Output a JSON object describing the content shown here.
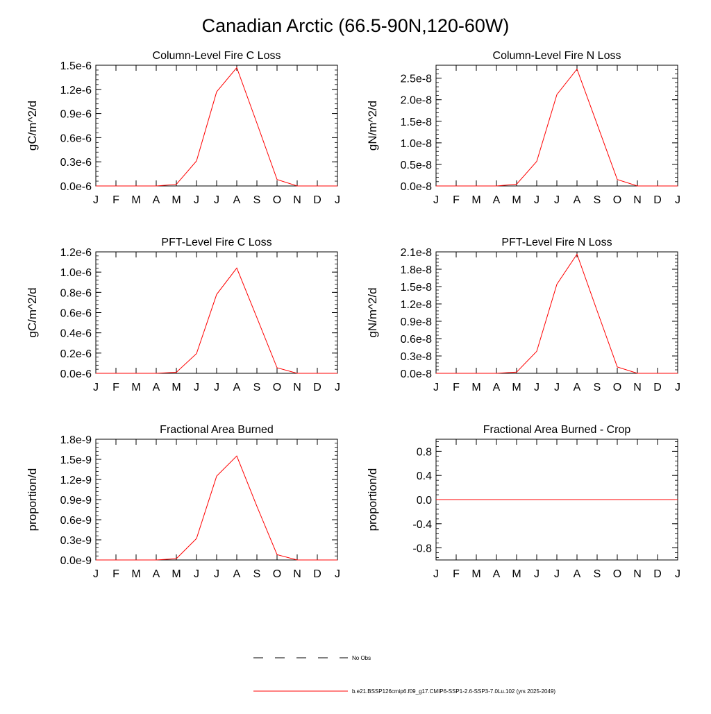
{
  "figure": {
    "title": "Canadian Arctic (66.5-90N,120-60W)"
  },
  "legend": {
    "placement": "bottom-center",
    "items": [
      {
        "label": "No Obs",
        "color": "#000000",
        "style": "dashed"
      },
      {
        "label": "b.e21.BSSP126cmip6.f09_g17.CMIP6-SSP1-2.6-SSP3-7.0Lu.102 (yrs 2025-2049)",
        "color": "#ff0000",
        "style": "solid"
      }
    ]
  },
  "chart_data": [
    {
      "type": "line",
      "title": "Column-Level Fire C Loss",
      "ylabel": "gC/m^2/d",
      "categories": [
        "J",
        "F",
        "M",
        "A",
        "M",
        "J",
        "J",
        "A",
        "S",
        "O",
        "N",
        "D",
        "J"
      ],
      "ylim": [
        0,
        1.5e-06
      ],
      "yticks": [
        0,
        3e-07,
        6e-07,
        9e-07,
        1.2e-06,
        1.5e-06
      ],
      "ytick_labels": [
        "0.0e-6",
        "0.3e-6",
        "0.6e-6",
        "0.9e-6",
        "1.2e-6",
        "1.5e-6"
      ],
      "series": [
        {
          "color": "#ff0000",
          "values": [
            0,
            0,
            0,
            0,
            2e-08,
            3.1e-07,
            1.17e-06,
            1.47e-06,
            7.8e-07,
            8e-08,
            0,
            0,
            0
          ]
        }
      ]
    },
    {
      "type": "line",
      "title": "Column-Level Fire N Loss",
      "ylabel": "gN/m^2/d",
      "categories": [
        "J",
        "F",
        "M",
        "A",
        "M",
        "J",
        "J",
        "A",
        "S",
        "O",
        "N",
        "D",
        "J"
      ],
      "ylim": [
        0,
        2.8e-08
      ],
      "yticks": [
        0,
        5e-09,
        1e-08,
        1.5e-08,
        2e-08,
        2.5e-08
      ],
      "ytick_labels": [
        "0.0e-8",
        "0.5e-8",
        "1.0e-8",
        "1.5e-8",
        "2.0e-8",
        "2.5e-8"
      ],
      "series": [
        {
          "color": "#ff0000",
          "values": [
            0,
            0,
            0,
            0,
            4e-10,
            5.7e-09,
            2.12e-08,
            2.71e-08,
            1.43e-08,
            1.5e-09,
            0,
            0,
            0
          ]
        }
      ]
    },
    {
      "type": "line",
      "title": "PFT-Level Fire C Loss",
      "ylabel": "gC/m^2/d",
      "categories": [
        "J",
        "F",
        "M",
        "A",
        "M",
        "J",
        "J",
        "A",
        "S",
        "O",
        "N",
        "D",
        "J"
      ],
      "ylim": [
        0,
        1.2e-06
      ],
      "yticks": [
        0,
        2e-07,
        4e-07,
        6e-07,
        8e-07,
        1e-06,
        1.2e-06
      ],
      "ytick_labels": [
        "0.0e-6",
        "0.2e-6",
        "0.4e-6",
        "0.6e-6",
        "0.8e-6",
        "1.0e-6",
        "1.2e-6"
      ],
      "series": [
        {
          "color": "#ff0000",
          "values": [
            0,
            0,
            0,
            0,
            1e-08,
            1.95e-07,
            7.8e-07,
            1.04e-06,
            5.5e-07,
            5.5e-08,
            0,
            0,
            0
          ]
        }
      ]
    },
    {
      "type": "line",
      "title": "PFT-Level Fire N Loss",
      "ylabel": "gN/m^2/d",
      "categories": [
        "J",
        "F",
        "M",
        "A",
        "M",
        "J",
        "J",
        "A",
        "S",
        "O",
        "N",
        "D",
        "J"
      ],
      "ylim": [
        0,
        2.1e-08
      ],
      "yticks": [
        0,
        3e-09,
        6e-09,
        9e-09,
        1.2e-08,
        1.5e-08,
        1.8e-08,
        2.1e-08
      ],
      "ytick_labels": [
        "0.0e-8",
        "0.3e-8",
        "0.6e-8",
        "0.9e-8",
        "1.2e-8",
        "1.5e-8",
        "1.8e-8",
        "2.1e-8"
      ],
      "series": [
        {
          "color": "#ff0000",
          "values": [
            0,
            0,
            0,
            0,
            2e-10,
            3.8e-09,
            1.54e-08,
            2.06e-08,
            1.08e-08,
            1.1e-09,
            0,
            0,
            0
          ]
        }
      ]
    },
    {
      "type": "line",
      "title": "Fractional Area Burned",
      "ylabel": "proportion/d",
      "categories": [
        "J",
        "F",
        "M",
        "A",
        "M",
        "J",
        "J",
        "A",
        "S",
        "O",
        "N",
        "D",
        "J"
      ],
      "ylim": [
        0,
        1.8e-09
      ],
      "yticks": [
        0,
        3e-10,
        6e-10,
        9e-10,
        1.2e-09,
        1.5e-09,
        1.8e-09
      ],
      "ytick_labels": [
        "0.0e-9",
        "0.3e-9",
        "0.6e-9",
        "0.9e-9",
        "1.2e-9",
        "1.5e-9",
        "1.8e-9"
      ],
      "series": [
        {
          "color": "#ff0000",
          "values": [
            0,
            0,
            0,
            0,
            2e-11,
            3.2e-10,
            1.25e-09,
            1.55e-09,
            8e-10,
            8e-11,
            0,
            0,
            0
          ]
        }
      ]
    },
    {
      "type": "line",
      "title": "Fractional Area Burned - Crop",
      "ylabel": "proportion/d",
      "categories": [
        "J",
        "F",
        "M",
        "A",
        "M",
        "J",
        "J",
        "A",
        "S",
        "O",
        "N",
        "D",
        "J"
      ],
      "ylim": [
        -1,
        1
      ],
      "yticks": [
        -0.8,
        -0.4,
        0,
        0.4,
        0.8
      ],
      "ytick_labels": [
        "-0.8",
        "-0.4",
        "0.0",
        "0.4",
        "0.8"
      ],
      "series": [
        {
          "color": "#ff0000",
          "values": [
            0,
            0,
            0,
            0,
            0,
            0,
            0,
            0,
            0,
            0,
            0,
            0,
            0
          ]
        }
      ]
    }
  ]
}
